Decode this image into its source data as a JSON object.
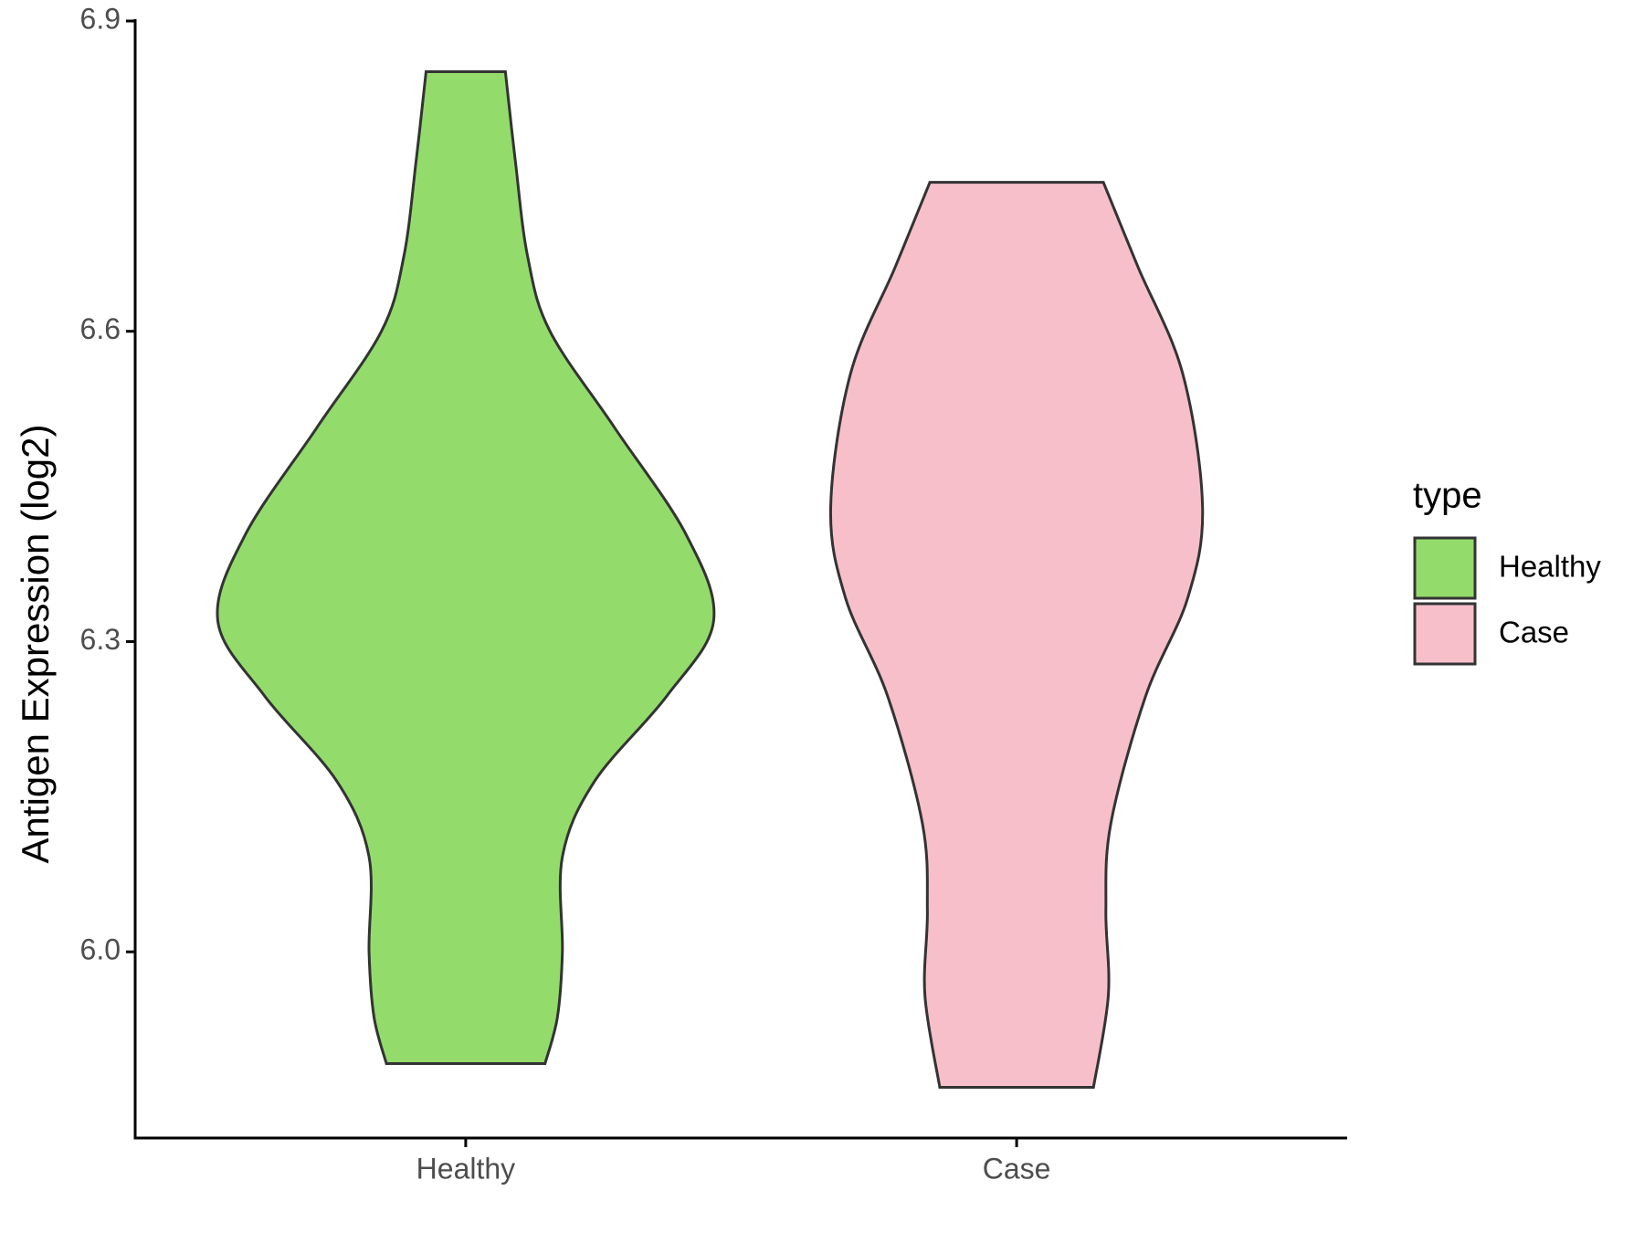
{
  "chart_data": {
    "type": "violin",
    "ylabel": "Antigen Expression (log2)",
    "categories": [
      "Healthy",
      "Case"
    ],
    "legend_title": "type",
    "series": [
      {
        "name": "Healthy",
        "color": "#93dc6b",
        "y": [
          6.851,
          6.765,
          6.672,
          6.6,
          6.507,
          6.403,
          6.32,
          6.247,
          6.165,
          6.092,
          6.0,
          5.937,
          5.892
        ],
        "density": [
          0.16,
          0.2,
          0.25,
          0.34,
          0.6,
          0.89,
          1.0,
          0.81,
          0.52,
          0.39,
          0.39,
          0.37,
          0.32
        ]
      },
      {
        "name": "Case",
        "color": "#f7bfca",
        "y": [
          6.744,
          6.662,
          6.559,
          6.43,
          6.342,
          6.247,
          6.124,
          6.04,
          5.958,
          5.869
        ],
        "density": [
          0.35,
          0.49,
          0.67,
          0.75,
          0.69,
          0.52,
          0.38,
          0.36,
          0.37,
          0.31
        ]
      }
    ],
    "ylim": [
      5.82,
      6.9
    ],
    "yticks": [
      {
        "value": 6,
        "label": "6.0"
      },
      6.3,
      6.6,
      6.9
    ]
  }
}
